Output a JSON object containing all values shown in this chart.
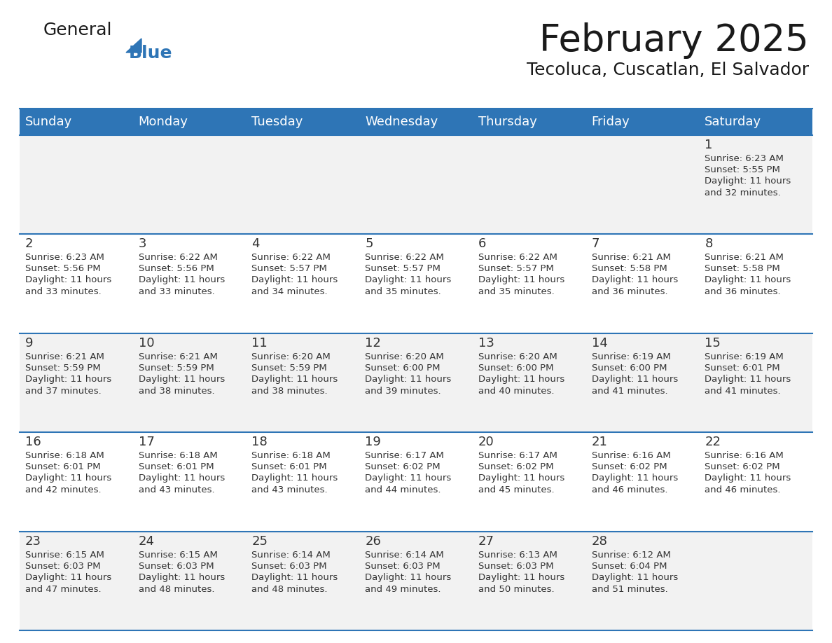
{
  "title": "February 2025",
  "subtitle": "Tecoluca, Cuscatlan, El Salvador",
  "days_of_week": [
    "Sunday",
    "Monday",
    "Tuesday",
    "Wednesday",
    "Thursday",
    "Friday",
    "Saturday"
  ],
  "header_bg": "#2E75B6",
  "header_text": "#FFFFFF",
  "row_bg_even": "#F2F2F2",
  "row_bg_odd": "#FFFFFF",
  "separator_color": "#2E75B6",
  "text_color": "#333333",
  "day_number_color": "#333333",
  "calendar_data": [
    [
      {
        "day": null,
        "sunrise": null,
        "sunset": null,
        "daylight": null
      },
      {
        "day": null,
        "sunrise": null,
        "sunset": null,
        "daylight": null
      },
      {
        "day": null,
        "sunrise": null,
        "sunset": null,
        "daylight": null
      },
      {
        "day": null,
        "sunrise": null,
        "sunset": null,
        "daylight": null
      },
      {
        "day": null,
        "sunrise": null,
        "sunset": null,
        "daylight": null
      },
      {
        "day": null,
        "sunrise": null,
        "sunset": null,
        "daylight": null
      },
      {
        "day": 1,
        "sunrise": "6:23 AM",
        "sunset": "5:55 PM",
        "daylight": "11 hours\nand 32 minutes."
      }
    ],
    [
      {
        "day": 2,
        "sunrise": "6:23 AM",
        "sunset": "5:56 PM",
        "daylight": "11 hours\nand 33 minutes."
      },
      {
        "day": 3,
        "sunrise": "6:22 AM",
        "sunset": "5:56 PM",
        "daylight": "11 hours\nand 33 minutes."
      },
      {
        "day": 4,
        "sunrise": "6:22 AM",
        "sunset": "5:57 PM",
        "daylight": "11 hours\nand 34 minutes."
      },
      {
        "day": 5,
        "sunrise": "6:22 AM",
        "sunset": "5:57 PM",
        "daylight": "11 hours\nand 35 minutes."
      },
      {
        "day": 6,
        "sunrise": "6:22 AM",
        "sunset": "5:57 PM",
        "daylight": "11 hours\nand 35 minutes."
      },
      {
        "day": 7,
        "sunrise": "6:21 AM",
        "sunset": "5:58 PM",
        "daylight": "11 hours\nand 36 minutes."
      },
      {
        "day": 8,
        "sunrise": "6:21 AM",
        "sunset": "5:58 PM",
        "daylight": "11 hours\nand 36 minutes."
      }
    ],
    [
      {
        "day": 9,
        "sunrise": "6:21 AM",
        "sunset": "5:59 PM",
        "daylight": "11 hours\nand 37 minutes."
      },
      {
        "day": 10,
        "sunrise": "6:21 AM",
        "sunset": "5:59 PM",
        "daylight": "11 hours\nand 38 minutes."
      },
      {
        "day": 11,
        "sunrise": "6:20 AM",
        "sunset": "5:59 PM",
        "daylight": "11 hours\nand 38 minutes."
      },
      {
        "day": 12,
        "sunrise": "6:20 AM",
        "sunset": "6:00 PM",
        "daylight": "11 hours\nand 39 minutes."
      },
      {
        "day": 13,
        "sunrise": "6:20 AM",
        "sunset": "6:00 PM",
        "daylight": "11 hours\nand 40 minutes."
      },
      {
        "day": 14,
        "sunrise": "6:19 AM",
        "sunset": "6:00 PM",
        "daylight": "11 hours\nand 41 minutes."
      },
      {
        "day": 15,
        "sunrise": "6:19 AM",
        "sunset": "6:01 PM",
        "daylight": "11 hours\nand 41 minutes."
      }
    ],
    [
      {
        "day": 16,
        "sunrise": "6:18 AM",
        "sunset": "6:01 PM",
        "daylight": "11 hours\nand 42 minutes."
      },
      {
        "day": 17,
        "sunrise": "6:18 AM",
        "sunset": "6:01 PM",
        "daylight": "11 hours\nand 43 minutes."
      },
      {
        "day": 18,
        "sunrise": "6:18 AM",
        "sunset": "6:01 PM",
        "daylight": "11 hours\nand 43 minutes."
      },
      {
        "day": 19,
        "sunrise": "6:17 AM",
        "sunset": "6:02 PM",
        "daylight": "11 hours\nand 44 minutes."
      },
      {
        "day": 20,
        "sunrise": "6:17 AM",
        "sunset": "6:02 PM",
        "daylight": "11 hours\nand 45 minutes."
      },
      {
        "day": 21,
        "sunrise": "6:16 AM",
        "sunset": "6:02 PM",
        "daylight": "11 hours\nand 46 minutes."
      },
      {
        "day": 22,
        "sunrise": "6:16 AM",
        "sunset": "6:02 PM",
        "daylight": "11 hours\nand 46 minutes."
      }
    ],
    [
      {
        "day": 23,
        "sunrise": "6:15 AM",
        "sunset": "6:03 PM",
        "daylight": "11 hours\nand 47 minutes."
      },
      {
        "day": 24,
        "sunrise": "6:15 AM",
        "sunset": "6:03 PM",
        "daylight": "11 hours\nand 48 minutes."
      },
      {
        "day": 25,
        "sunrise": "6:14 AM",
        "sunset": "6:03 PM",
        "daylight": "11 hours\nand 48 minutes."
      },
      {
        "day": 26,
        "sunrise": "6:14 AM",
        "sunset": "6:03 PM",
        "daylight": "11 hours\nand 49 minutes."
      },
      {
        "day": 27,
        "sunrise": "6:13 AM",
        "sunset": "6:03 PM",
        "daylight": "11 hours\nand 50 minutes."
      },
      {
        "day": 28,
        "sunrise": "6:12 AM",
        "sunset": "6:04 PM",
        "daylight": "11 hours\nand 51 minutes."
      },
      {
        "day": null,
        "sunrise": null,
        "sunset": null,
        "daylight": null
      }
    ]
  ],
  "logo_color_general": "#1a1a1a",
  "logo_color_blue": "#2E75B6",
  "logo_triangle_color": "#2E75B6"
}
